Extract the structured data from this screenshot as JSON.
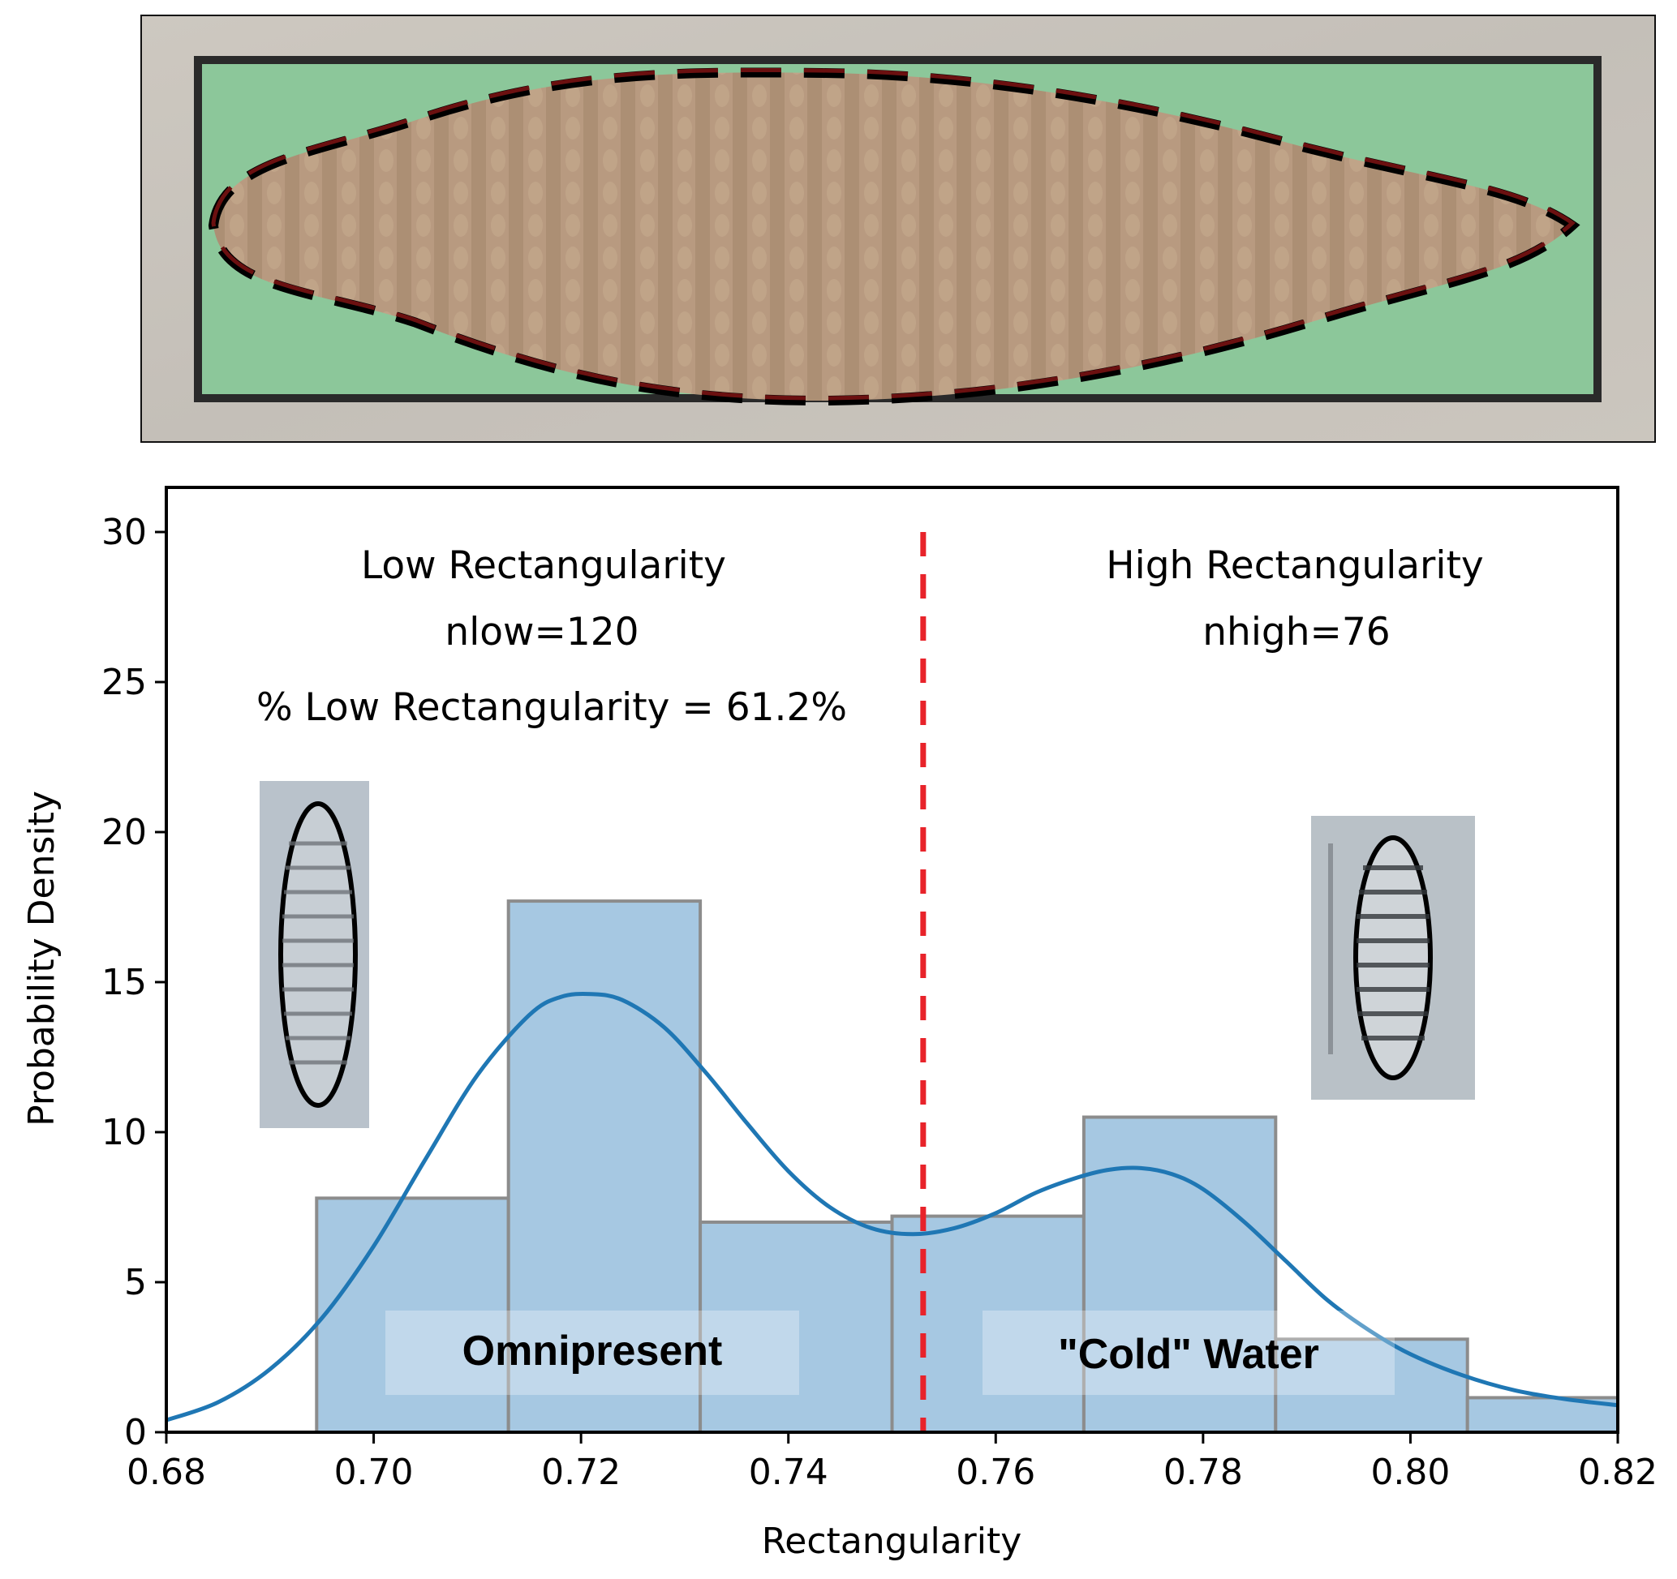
{
  "figure": {
    "micrograph": {
      "description": "diatom valve outlined with dashed contour inside bounding rectangle",
      "background_color": "#c9c4bc",
      "box_fill_color": "#8cc79a",
      "cell_fill_color": "#b89a80",
      "outline_color": "#000000",
      "outline_accent_color": "#6b1010"
    },
    "inset_images": [
      {
        "name": "low-rectangularity-diatom",
        "shape": "lanceolate"
      },
      {
        "name": "high-rectangularity-diatom",
        "shape": "elliptical"
      }
    ]
  },
  "chart_data": {
    "type": "bar",
    "subtype": "histogram-with-kde",
    "title": "",
    "xlabel": "Rectangularity",
    "ylabel": "Probability Density",
    "xlim": [
      0.68,
      0.82
    ],
    "ylim": [
      0,
      31.5
    ],
    "xticks": [
      0.68,
      0.7,
      0.72,
      0.74,
      0.76,
      0.78,
      0.8,
      0.82
    ],
    "xtick_labels": [
      "0.68",
      "0.70",
      "0.72",
      "0.74",
      "0.76",
      "0.78",
      "0.80",
      "0.82"
    ],
    "yticks": [
      0,
      5,
      10,
      15,
      20,
      25,
      30
    ],
    "ytick_labels": [
      "0",
      "5",
      "10",
      "15",
      "20",
      "25",
      "30"
    ],
    "grid": false,
    "bins": [
      {
        "x0": 0.6945,
        "x1": 0.713,
        "density": 7.8
      },
      {
        "x0": 0.713,
        "x1": 0.7315,
        "density": 17.7
      },
      {
        "x0": 0.7315,
        "x1": 0.75,
        "density": 7.0
      },
      {
        "x0": 0.75,
        "x1": 0.7685,
        "density": 7.2
      },
      {
        "x0": 0.7685,
        "x1": 0.787,
        "density": 10.5
      },
      {
        "x0": 0.787,
        "x1": 0.8055,
        "density": 3.1
      },
      {
        "x0": 0.8055,
        "x1": 0.824,
        "density": 1.15
      }
    ],
    "kde": {
      "x": [
        0.68,
        0.685,
        0.69,
        0.695,
        0.7,
        0.705,
        0.71,
        0.715,
        0.718,
        0.721,
        0.724,
        0.728,
        0.732,
        0.736,
        0.74,
        0.744,
        0.748,
        0.752,
        0.756,
        0.76,
        0.764,
        0.768,
        0.771,
        0.774,
        0.777,
        0.78,
        0.784,
        0.788,
        0.792,
        0.796,
        0.8,
        0.805,
        0.81,
        0.815,
        0.82
      ],
      "y": [
        0.4,
        1.0,
        2.1,
        3.8,
        6.2,
        9.1,
        11.9,
        13.9,
        14.5,
        14.6,
        14.4,
        13.5,
        12.0,
        10.3,
        8.7,
        7.5,
        6.8,
        6.6,
        6.8,
        7.3,
        8.0,
        8.5,
        8.75,
        8.8,
        8.6,
        8.1,
        7.0,
        5.7,
        4.4,
        3.4,
        2.6,
        1.9,
        1.4,
        1.1,
        0.9
      ]
    },
    "threshold": {
      "x": 0.753,
      "style": "dashed",
      "color": "#e8232a"
    },
    "colors": {
      "bar_fill": "#a6c8e2",
      "bar_edge": "#8c8c8c",
      "kde_line": "#1f77b4",
      "threshold": "#e8232a"
    },
    "annotations": {
      "low": {
        "title": "Low Rectangularity",
        "count": "nlow=120",
        "percent": "% Low Rectangularity = 61.2%"
      },
      "high": {
        "title": "High Rectangularity",
        "count": "nhigh=76"
      },
      "region_low": "Omnipresent",
      "region_high": "\"Cold\" Water"
    }
  }
}
